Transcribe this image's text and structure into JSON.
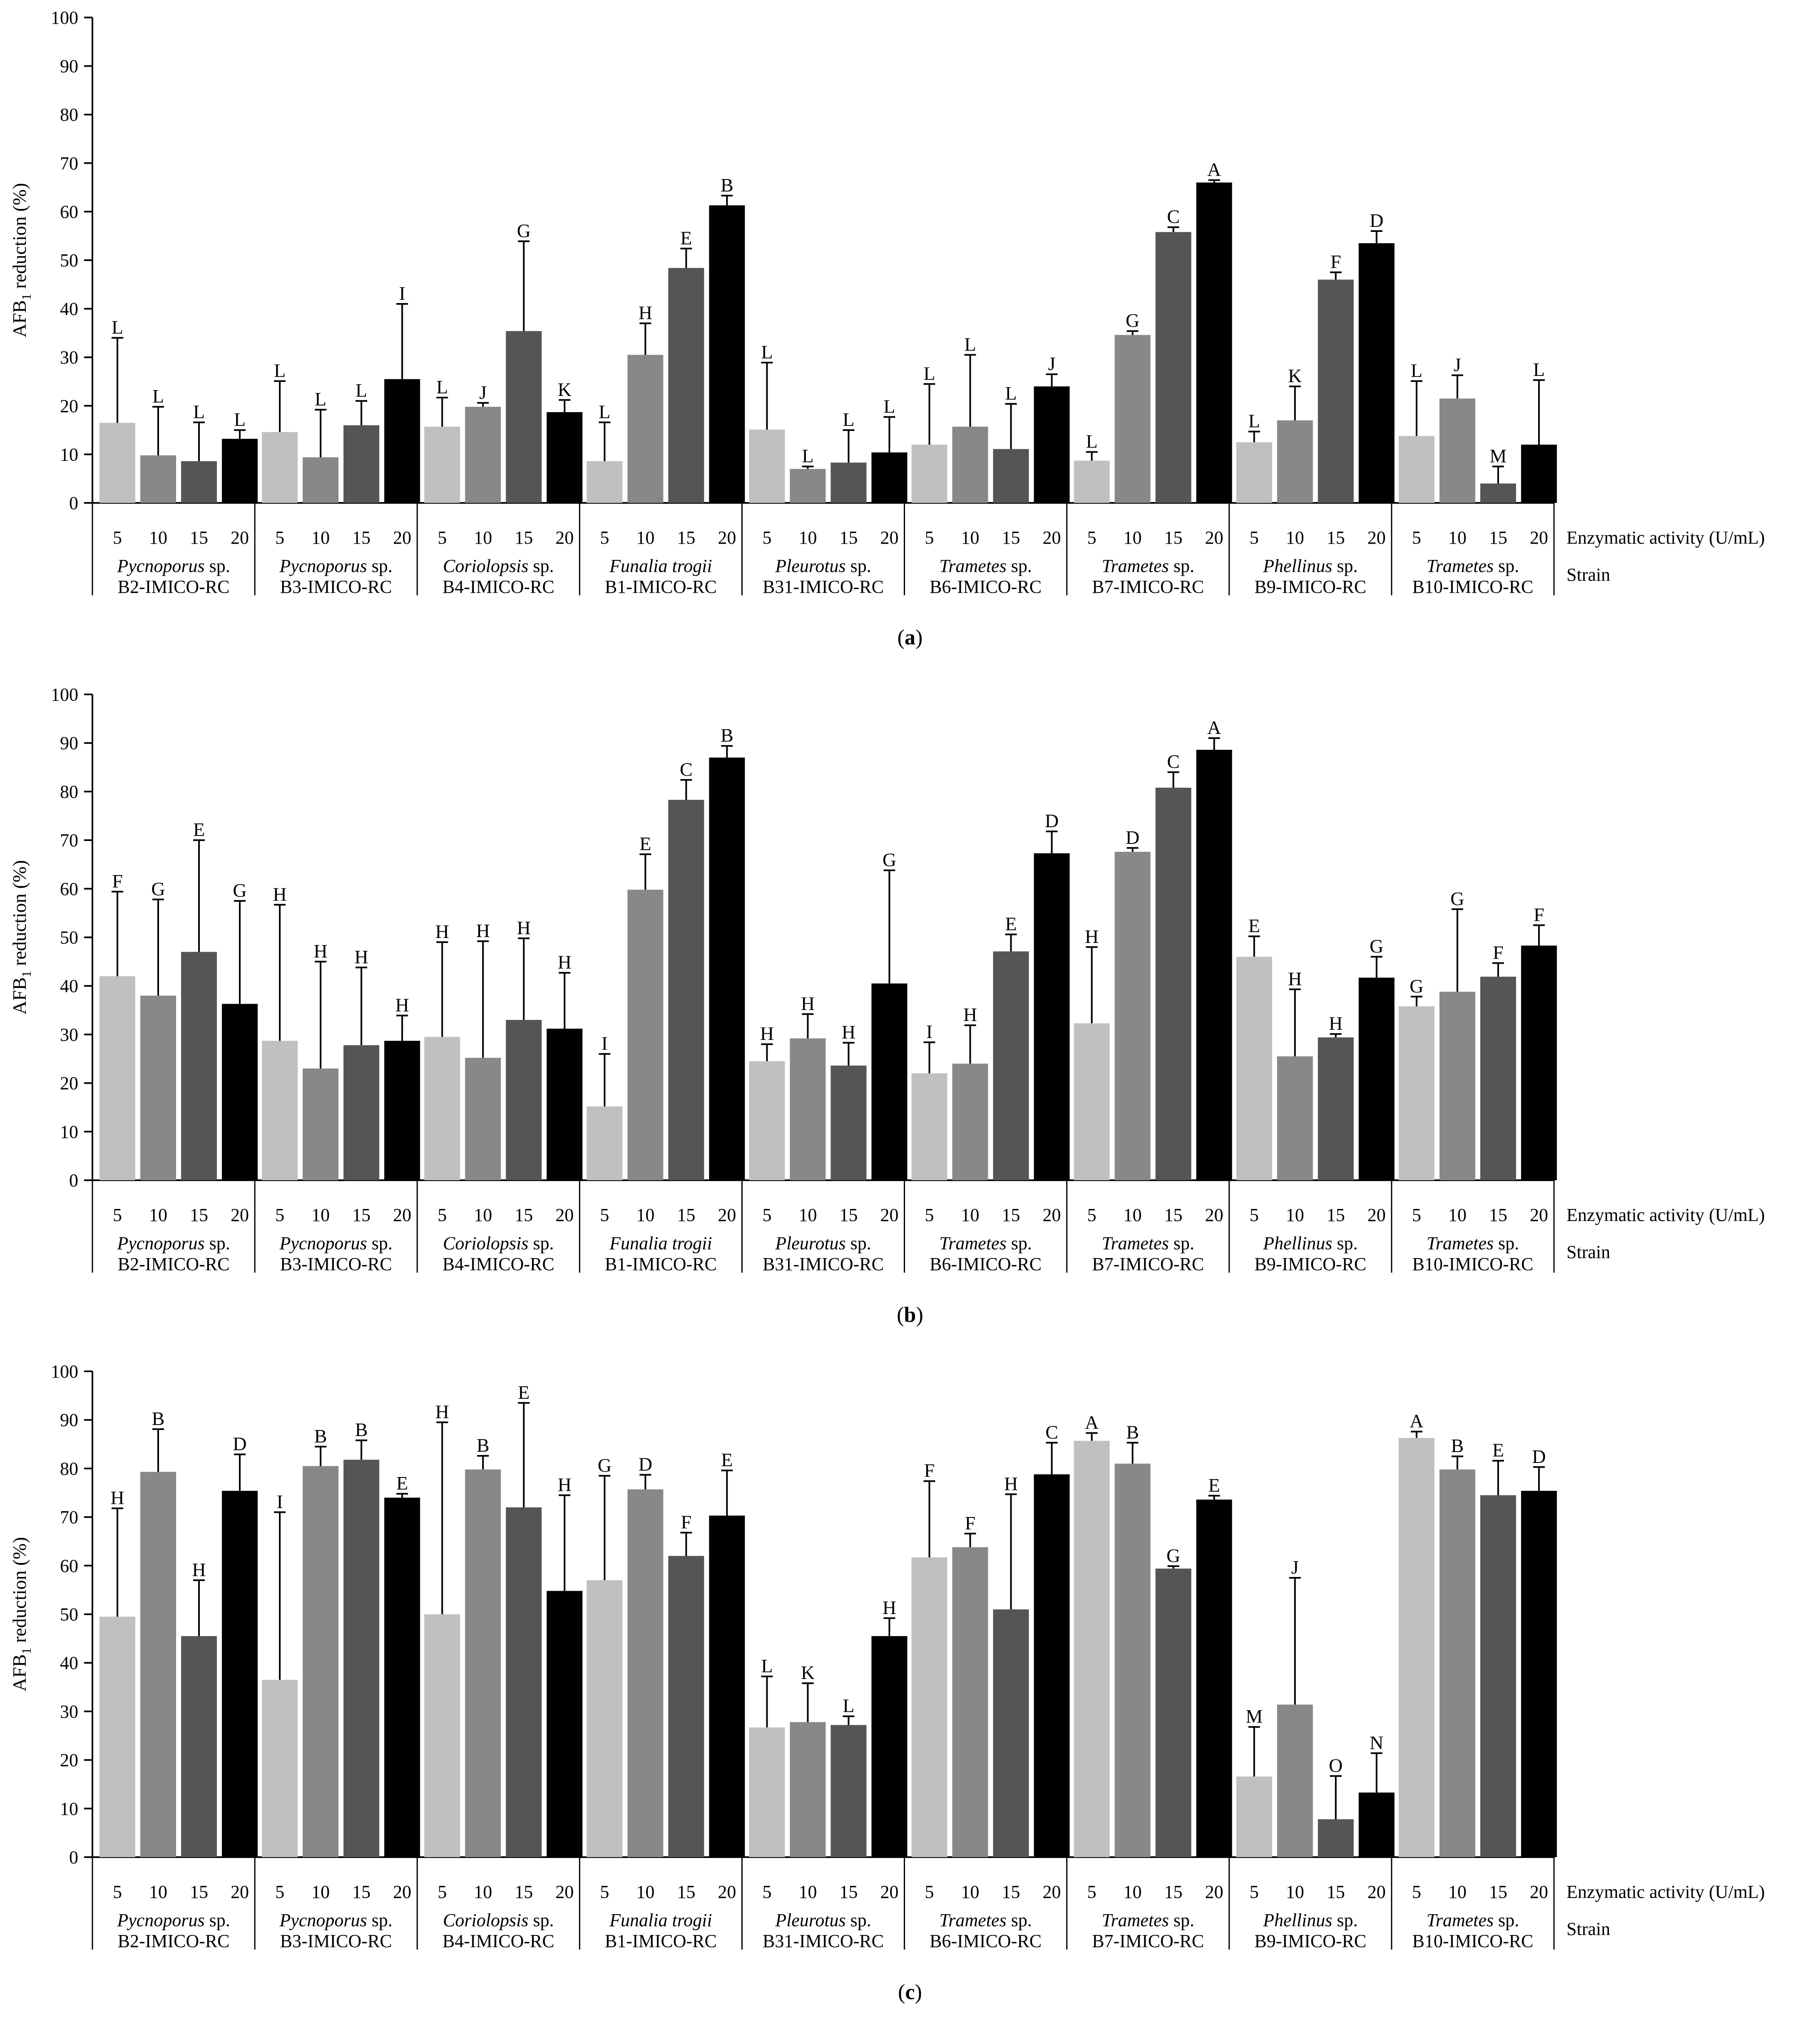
{
  "figure": {
    "y_axis_label_main": "AFB",
    "y_axis_label_sub": "1",
    "y_axis_label_rest": " reduction (%)",
    "x_row_label_activity": "Enzymatic activity (U/mL)",
    "x_row_label_strain": "Strain",
    "colors": [
      "#c0c0c0",
      "#888888",
      "#555555",
      "#000000"
    ],
    "activities": [
      "5",
      "10",
      "15",
      "20"
    ],
    "strains": [
      {
        "genus": "Pycnoporus",
        "suffix": " sp.",
        "code": "B2-IMICO-RC"
      },
      {
        "genus": "Pycnoporus",
        "suffix": " sp.",
        "code": "B3-IMICO-RC"
      },
      {
        "genus": "Coriolopsis",
        "suffix": " sp.",
        "code": "B4-IMICO-RC"
      },
      {
        "genus": "Funalia trogii",
        "suffix": "",
        "code": "B1-IMICO-RC"
      },
      {
        "genus": "Pleurotus",
        "suffix": " sp.",
        "code": "B31-IMICO-RC"
      },
      {
        "genus": "Trametes",
        "suffix": " sp.",
        "code": "B6-IMICO-RC"
      },
      {
        "genus": "Trametes",
        "suffix": " sp.",
        "code": "B7-IMICO-RC"
      },
      {
        "genus": "Phellinus",
        "suffix": " sp.",
        "code": "B9-IMICO-RC"
      },
      {
        "genus": "Trametes",
        "suffix": " sp.",
        "code": "B10-IMICO-RC"
      }
    ]
  },
  "chart_data": [
    {
      "type": "bar",
      "panel": "(a)",
      "panel_letter": "a",
      "ylim": [
        0,
        100
      ],
      "yticks": [
        0,
        10,
        20,
        30,
        40,
        50,
        60,
        70,
        80,
        90,
        100
      ],
      "ylabel": "AFB1 reduction (%)",
      "values": [
        16.5,
        9.8,
        8.6,
        13.2,
        14.6,
        9.4,
        16.0,
        25.5,
        15.7,
        19.8,
        35.4,
        18.7,
        8.6,
        30.5,
        48.4,
        61.3,
        15.1,
        7.0,
        8.3,
        10.4,
        12.0,
        15.7,
        11.1,
        24.0,
        8.7,
        34.6,
        55.8,
        66.0,
        12.5,
        17.0,
        46.0,
        53.5,
        13.8,
        21.5,
        4.0,
        12.0
      ],
      "errors": [
        17.5,
        10,
        8,
        1.8,
        10.5,
        9.8,
        5,
        15.5,
        6,
        0.8,
        18.5,
        2.5,
        8,
        6.5,
        4,
        2,
        13.8,
        0.5,
        6.7,
        7.3,
        12.5,
        14.8,
        9.3,
        2.5,
        1.8,
        0.8,
        1,
        0.5,
        2.2,
        7,
        1.5,
        2.5,
        11.3,
        4.8,
        3.5,
        13.3
      ],
      "letters": [
        "L",
        "L",
        "L",
        "L",
        "L",
        "L",
        "L",
        "I",
        "L",
        "J",
        "G",
        "K",
        "L",
        "H",
        "E",
        "B",
        "L",
        "L",
        "L",
        "L",
        "L",
        "L",
        "L",
        "J",
        "L",
        "G",
        "C",
        "A",
        "L",
        "K",
        "F",
        "D",
        "L",
        "J",
        "M",
        "L"
      ]
    },
    {
      "type": "bar",
      "panel": "(b)",
      "panel_letter": "b",
      "ylim": [
        0,
        100
      ],
      "yticks": [
        0,
        10,
        20,
        30,
        40,
        50,
        60,
        70,
        80,
        90,
        100
      ],
      "ylabel": "AFB1 reduction (%)",
      "values": [
        42.0,
        38.0,
        47.0,
        36.3,
        28.7,
        23.0,
        27.8,
        28.7,
        29.5,
        25.2,
        33.0,
        31.2,
        15.2,
        59.8,
        78.3,
        87.0,
        24.5,
        29.2,
        23.6,
        40.5,
        22.0,
        24.0,
        47.1,
        67.3,
        32.3,
        67.6,
        80.8,
        88.6,
        46.0,
        25.5,
        29.4,
        41.7,
        35.8,
        38.8,
        41.9,
        48.3
      ],
      "errors": [
        17.4,
        19.8,
        23,
        21.2,
        28,
        22,
        16,
        5.2,
        19.5,
        24,
        16.8,
        11.5,
        10.8,
        7.3,
        4.1,
        2.4,
        3.5,
        5,
        4.7,
        23.3,
        6.4,
        7.9,
        3.5,
        4.5,
        15.7,
        0.8,
        3.2,
        2.4,
        4.2,
        13.8,
        0.7,
        4.3,
        2,
        17,
        2.8,
        4.2
      ],
      "letters": [
        "F",
        "G",
        "E",
        "G",
        "H",
        "H",
        "H",
        "H",
        "H",
        "H",
        "H",
        "H",
        "I",
        "E",
        "C",
        "B",
        "H",
        "H",
        "H",
        "G",
        "I",
        "H",
        "E",
        "D",
        "H",
        "D",
        "C",
        "A",
        "E",
        "H",
        "H",
        "G",
        "G",
        "G",
        "F",
        "F"
      ]
    },
    {
      "type": "bar",
      "panel": "(c)",
      "panel_letter": "c",
      "ylim": [
        0,
        100
      ],
      "yticks": [
        0,
        10,
        20,
        30,
        40,
        50,
        60,
        70,
        80,
        90,
        100
      ],
      "ylabel": "AFB1 reduction (%)",
      "values": [
        49.5,
        79.3,
        45.5,
        75.4,
        36.5,
        80.5,
        81.8,
        74.0,
        50.0,
        79.8,
        72.0,
        54.8,
        57.0,
        75.7,
        62.0,
        70.3,
        26.7,
        27.8,
        27.2,
        45.5,
        61.7,
        63.8,
        51.0,
        78.8,
        85.7,
        81.0,
        59.4,
        73.6,
        16.6,
        31.4,
        7.8,
        13.3,
        86.3,
        79.8,
        74.5,
        75.4
      ],
      "errors": [
        22.3,
        8.8,
        11.5,
        7.5,
        34.5,
        4,
        4,
        0.8,
        39.5,
        2.8,
        21.5,
        19.7,
        21.5,
        3,
        4.8,
        9.3,
        10.5,
        8,
        1.8,
        3.7,
        15.7,
        2.8,
        23.7,
        6.5,
        1.6,
        4.3,
        0.5,
        0.8,
        10.2,
        26.1,
        8.9,
        8.1,
        1.3,
        2.7,
        7.1,
        4.9
      ],
      "letters": [
        "H",
        "B",
        "H",
        "D",
        "I",
        "B",
        "B",
        "E",
        "H",
        "B",
        "E",
        "H",
        "G",
        "D",
        "F",
        "E",
        "L",
        "K",
        "L",
        "H",
        "F",
        "F",
        "H",
        "C",
        "A",
        "B",
        "G",
        "E",
        "M",
        "J",
        "O",
        "N",
        "A",
        "B",
        "E",
        "D"
      ]
    }
  ]
}
